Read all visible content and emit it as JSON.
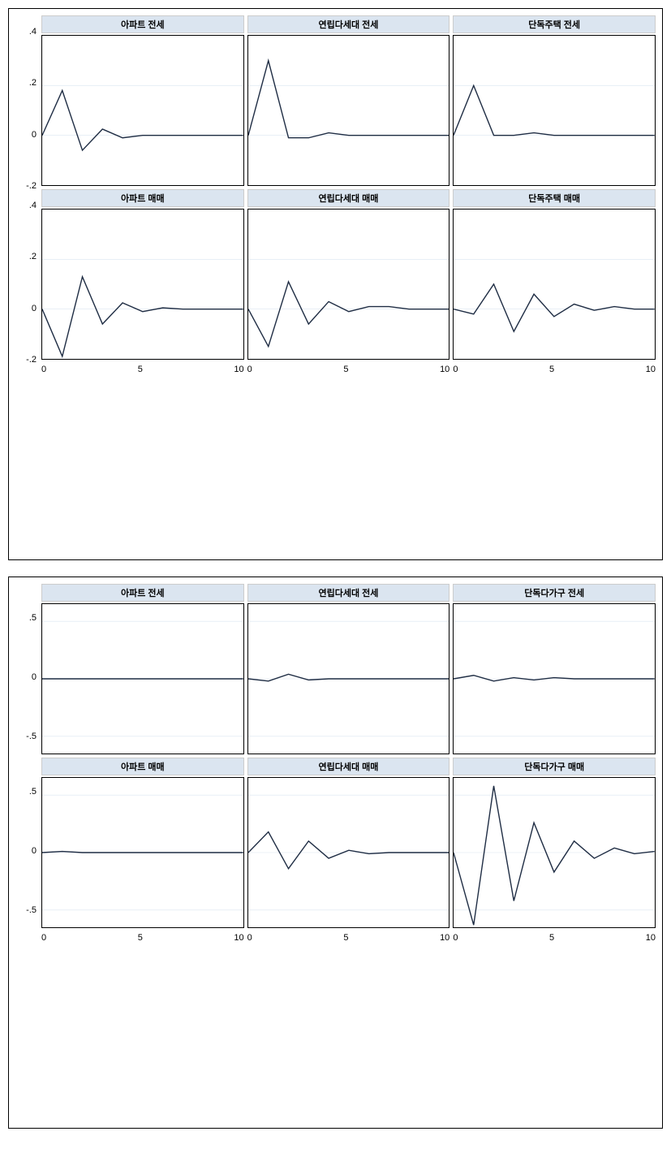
{
  "figures": [
    {
      "ylim": [
        -0.2,
        0.4
      ],
      "yticks": [
        0.4,
        0.2,
        0,
        -0.2
      ],
      "ytick_labels": [
        ".4",
        ".2",
        "0",
        "-.2"
      ],
      "xlim": [
        0,
        10
      ],
      "xticks": [
        0,
        5,
        10
      ],
      "xtick_labels": [
        "0",
        "5",
        "10"
      ],
      "title_bg": "#dbe5f0",
      "grid_color": "#dbe5f0",
      "line_color": "#1f2d44",
      "line_width": 1.4,
      "title_fontsize": 11,
      "axis_fontsize": 11,
      "rows": [
        {
          "show_x_axis": false,
          "panels": [
            {
              "title": "아파트 전세",
              "values": [
                0.0,
                0.18,
                -0.06,
                0.025,
                -0.01,
                0.0,
                0.0,
                0.0,
                0.0,
                0.0,
                0.0
              ]
            },
            {
              "title": "연립다세대 전세",
              "values": [
                0.0,
                0.3,
                -0.01,
                -0.01,
                0.01,
                0.0,
                0.0,
                0.0,
                0.0,
                0.0,
                0.0
              ]
            },
            {
              "title": "단독주택 전세",
              "values": [
                0.0,
                0.2,
                0.0,
                0.0,
                0.01,
                0.0,
                0.0,
                0.0,
                0.0,
                0.0,
                0.0
              ]
            }
          ]
        },
        {
          "show_x_axis": true,
          "panels": [
            {
              "title": "아파트 매매",
              "values": [
                0.0,
                -0.19,
                0.13,
                -0.06,
                0.025,
                -0.01,
                0.005,
                0.0,
                0.0,
                0.0,
                0.0
              ]
            },
            {
              "title": "연립다세대 매매",
              "values": [
                0.0,
                -0.15,
                0.11,
                -0.06,
                0.03,
                -0.01,
                0.01,
                0.01,
                0.0,
                0.0,
                0.0
              ]
            },
            {
              "title": "단독주택 매매",
              "values": [
                0.0,
                -0.02,
                0.1,
                -0.09,
                0.06,
                -0.03,
                0.02,
                -0.005,
                0.01,
                0.0,
                0.0
              ]
            }
          ]
        }
      ]
    },
    {
      "ylim": [
        -0.65,
        0.65
      ],
      "yticks": [
        0.5,
        0,
        -0.5
      ],
      "ytick_labels": [
        ".5",
        "0",
        "-.5"
      ],
      "xlim": [
        0,
        10
      ],
      "xticks": [
        0,
        5,
        10
      ],
      "xtick_labels": [
        "0",
        "5",
        "10"
      ],
      "title_bg": "#dbe5f0",
      "grid_color": "#dbe5f0",
      "line_color": "#1f2d44",
      "line_width": 1.4,
      "title_fontsize": 11,
      "axis_fontsize": 11,
      "rows": [
        {
          "show_x_axis": false,
          "panels": [
            {
              "title": "아파트 전세",
              "values": [
                0.0,
                0.0,
                0.0,
                0.0,
                0.0,
                0.0,
                0.0,
                0.0,
                0.0,
                0.0,
                0.0
              ]
            },
            {
              "title": "연립다세대 전세",
              "values": [
                0.0,
                -0.02,
                0.04,
                -0.01,
                0.0,
                0.0,
                0.0,
                0.0,
                0.0,
                0.0,
                0.0
              ]
            },
            {
              "title": "단독다가구 전세",
              "values": [
                0.0,
                0.03,
                -0.02,
                0.01,
                -0.01,
                0.01,
                0.0,
                0.0,
                0.0,
                0.0,
                0.0
              ]
            }
          ]
        },
        {
          "show_x_axis": true,
          "panels": [
            {
              "title": "아파트 매매",
              "values": [
                0.0,
                0.01,
                0.0,
                0.0,
                0.0,
                0.0,
                0.0,
                0.0,
                0.0,
                0.0,
                0.0
              ]
            },
            {
              "title": "연립다세대 매매",
              "values": [
                0.0,
                0.18,
                -0.14,
                0.1,
                -0.05,
                0.02,
                -0.01,
                0.0,
                0.0,
                0.0,
                0.0
              ]
            },
            {
              "title": "단독다가구 매매",
              "values": [
                0.0,
                -0.63,
                0.58,
                -0.42,
                0.26,
                -0.17,
                0.1,
                -0.05,
                0.04,
                -0.01,
                0.01
              ]
            }
          ]
        }
      ]
    }
  ]
}
